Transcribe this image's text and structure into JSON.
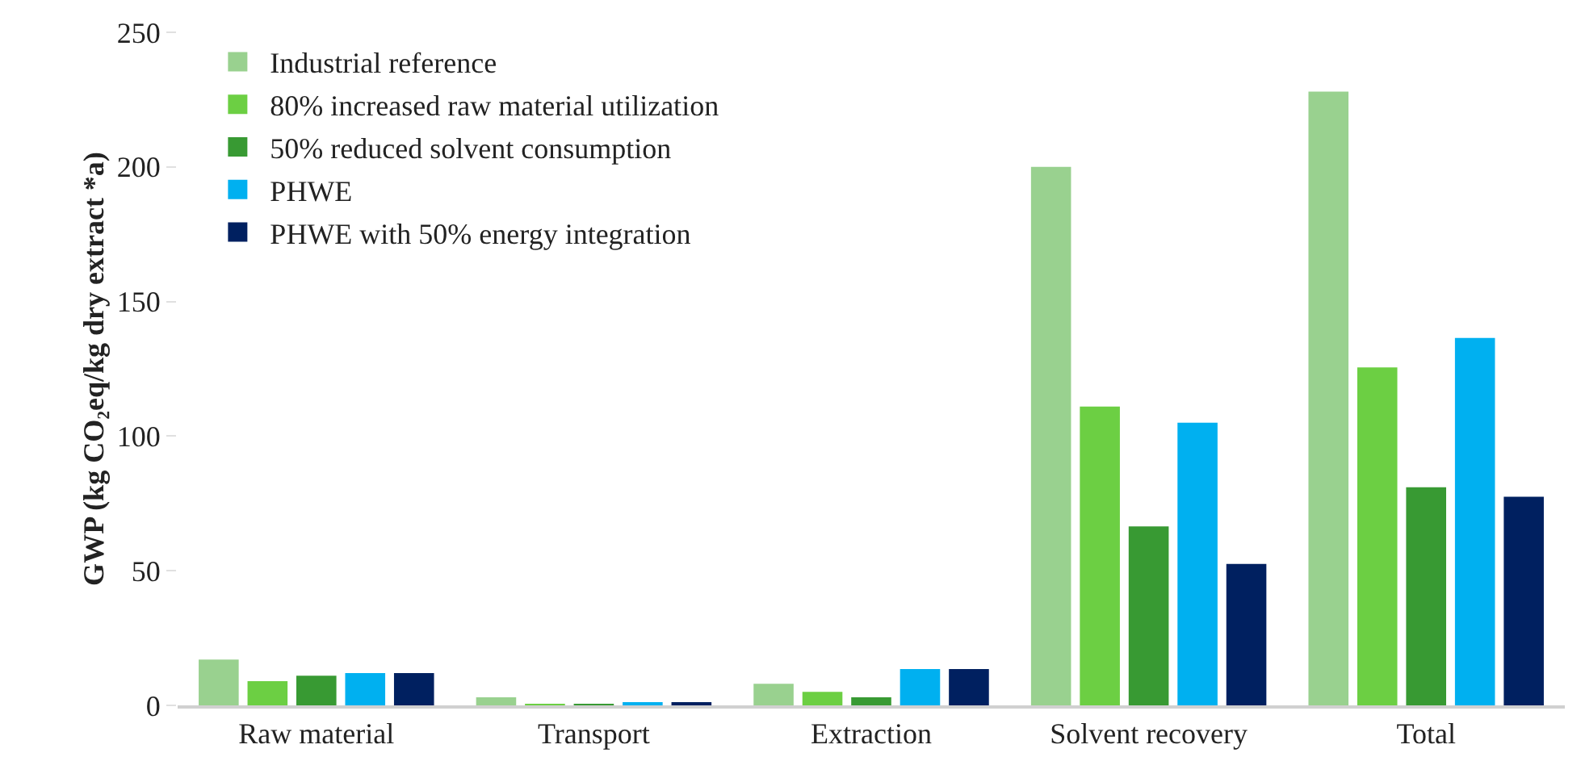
{
  "chart_data": {
    "type": "bar",
    "ylabel": "GWP (kg CO₂eq/kg dry extract *a)",
    "categories": [
      "Raw material",
      "Transport",
      "Extraction",
      "Solvent recovery",
      "Total"
    ],
    "series": [
      {
        "name": "Industrial reference",
        "color": "#99d18f",
        "values": [
          17,
          3,
          8,
          200,
          228
        ]
      },
      {
        "name": "80% increased raw material utilization",
        "color": "#6ccf43",
        "values": [
          9,
          0.5,
          5,
          111,
          125.5
        ]
      },
      {
        "name": "50% reduced solvent consumption",
        "color": "#389a33",
        "values": [
          11,
          0.5,
          3,
          66.5,
          81
        ]
      },
      {
        "name": "PHWE",
        "color": "#00b0f0",
        "values": [
          12,
          1,
          13.5,
          105,
          136.5
        ]
      },
      {
        "name": "PHWE with 50% energy integration",
        "color": "#002060",
        "values": [
          12,
          1,
          13.5,
          52.5,
          77.5
        ]
      }
    ],
    "ylim": [
      0,
      250
    ],
    "yticks": [
      0,
      50,
      100,
      150,
      200,
      250
    ],
    "grid": false,
    "legend": "top left"
  }
}
